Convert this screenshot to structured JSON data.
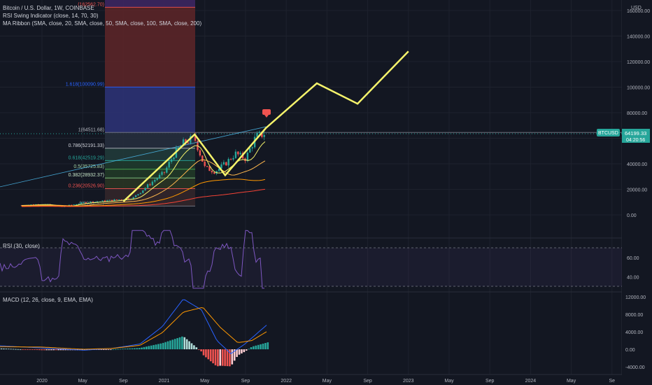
{
  "header": {
    "symbol_line": "Bitcoin / U.S. Dollar, 1W, COINBASE",
    "indicator_1": "RSI Swing Indicator (close, 14, 70, 30)",
    "indicator_2": "MA Ribbon (SMA, close, 20, SMA, close, 50, SMA, close, 100, SMA, close, 200)"
  },
  "price_axis": {
    "currency": "USD",
    "ticks": [
      "160000.00",
      "140000.00",
      "120000.00",
      "100000.00",
      "80000.00",
      "60000.00",
      "40000.00",
      "20000.00",
      "0.00"
    ],
    "ticker_label": "BTCUSD",
    "last_price": "64199.33",
    "countdown": "04:20:56"
  },
  "rsi_panel": {
    "label": "RSI (30, close)",
    "ticks": [
      "60.00",
      "40.00"
    ]
  },
  "macd_panel": {
    "label": "MACD (12, 26, close, 9, EMA, EMA)",
    "ticks": [
      "12000.00",
      "8000.00",
      "4000.00",
      "0.00",
      "-4000.00"
    ]
  },
  "time_axis": {
    "labels": [
      "2020",
      "May",
      "Sep",
      "2021",
      "May",
      "Sep",
      "2022",
      "May",
      "Sep",
      "2023",
      "May",
      "Sep",
      "2024",
      "May",
      "Se"
    ]
  },
  "colors": {
    "background": "#131722",
    "grid": "#1e222d",
    "projection": "#f5f36b",
    "up": "#26a69a",
    "down": "#ef5350",
    "ticker_badge": "#26a69a",
    "rsi_line": "#7e57c2",
    "macd_line": "#2962ff",
    "signal_line": "#ff9800"
  },
  "chart_data": {
    "type": "line",
    "title": "Bitcoin / U.S. Dollar, 1W, COINBASE",
    "ylabel": "USD",
    "ylim": [
      -8000,
      170000
    ],
    "x_labels": [
      "2020",
      "May",
      "Sep",
      "2021",
      "May",
      "Sep",
      "2022",
      "May",
      "Sep",
      "2023",
      "May",
      "Sep",
      "2024",
      "May",
      "Se"
    ],
    "fib_levels": [
      {
        "ratio": "1",
        "price": 64511.68,
        "label": "1(64511.68)"
      },
      {
        "ratio": "0.786",
        "price": 52191.33,
        "label": "0.786(52191.33)"
      },
      {
        "ratio": "0.618",
        "price": 42519.29,
        "label": "0.618(42519.29)"
      },
      {
        "ratio": "0.5",
        "price": 35725.83,
        "label": "0.5(35725.83)"
      },
      {
        "ratio": "0.382",
        "price": 28932.37,
        "label": "0.382(28932.37)"
      },
      {
        "ratio": "0.236",
        "price": 20526.9,
        "label": "0.236(20526.90)"
      },
      {
        "ratio": "1.618",
        "price": 100090.99,
        "label": "1.618(100090.99)"
      },
      {
        "ratio": "0",
        "price": 6939,
        "label": "0(6939.5...)"
      },
      {
        "ratio": "2.618",
        "price": 162562.7,
        "label": "(162562.70)"
      }
    ],
    "projection_path": [
      {
        "date": "2020-09",
        "price": 10500
      },
      {
        "date": "2021-04",
        "price": 63000
      },
      {
        "date": "2021-07",
        "price": 31000
      },
      {
        "date": "2021-11",
        "price": 68000
      },
      {
        "date": "2022-04",
        "price": 103000
      },
      {
        "date": "2022-08",
        "price": 87000
      },
      {
        "date": "2023-01",
        "price": 128000
      }
    ],
    "series": [
      {
        "name": "BTCUSD",
        "values": [
          {
            "date": "2019-11",
            "price": 7500
          },
          {
            "date": "2020-01",
            "price": 8500
          },
          {
            "date": "2020-03",
            "price": 6400
          },
          {
            "date": "2020-05",
            "price": 9500
          },
          {
            "date": "2020-08",
            "price": 11500
          },
          {
            "date": "2020-10",
            "price": 13500
          },
          {
            "date": "2020-12",
            "price": 27000
          },
          {
            "date": "2021-01",
            "price": 33000
          },
          {
            "date": "2021-02",
            "price": 48000
          },
          {
            "date": "2021-03",
            "price": 57000
          },
          {
            "date": "2021-04",
            "price": 60000
          },
          {
            "date": "2021-05",
            "price": 37000
          },
          {
            "date": "2021-06",
            "price": 34000
          },
          {
            "date": "2021-07",
            "price": 40000
          },
          {
            "date": "2021-08",
            "price": 48000
          },
          {
            "date": "2021-09",
            "price": 44000
          },
          {
            "date": "2021-10",
            "price": 61000
          },
          {
            "date": "2021-11",
            "price": 64199
          }
        ]
      }
    ],
    "rsi": {
      "ylim": [
        20,
        90
      ],
      "levels": [
        70,
        30
      ]
    },
    "macd": {
      "ylim": [
        -5000,
        13000
      ]
    }
  }
}
